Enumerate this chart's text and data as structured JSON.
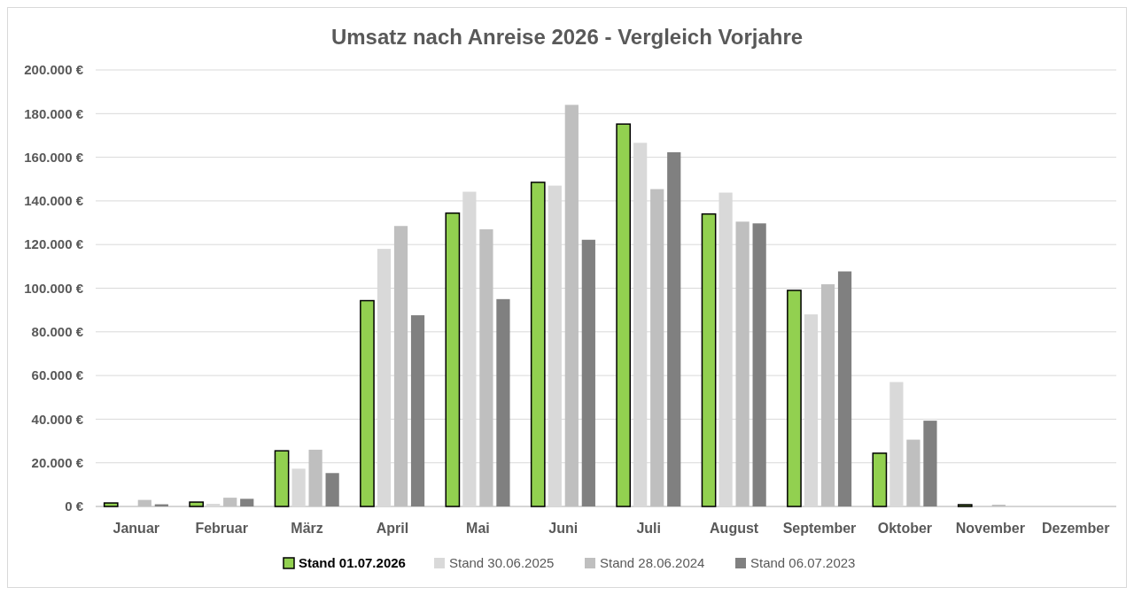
{
  "chart_data": {
    "type": "bar",
    "title": "Umsatz nach Anreise 2026 - Vergleich Vorjahre",
    "categories": [
      "Januar",
      "Februar",
      "März",
      "April",
      "Mai",
      "Juni",
      "Juli",
      "August",
      "September",
      "Oktober",
      "November",
      "Dezember"
    ],
    "series": [
      {
        "name": "Stand 01.07.2026",
        "color": "#92d050",
        "values": [
          1600,
          2000,
          25500,
          94300,
          134400,
          148500,
          175200,
          134000,
          99000,
          24400,
          800,
          0
        ]
      },
      {
        "name": "Stand 30.06.2025",
        "color": "#d9d9d9",
        "values": [
          0,
          1200,
          17300,
          118000,
          144200,
          147000,
          166600,
          143800,
          88000,
          57000,
          0,
          0
        ]
      },
      {
        "name": "Stand 28.06.2024",
        "color": "#bfbfbf",
        "values": [
          3000,
          4000,
          26000,
          128500,
          127000,
          184000,
          145400,
          130500,
          101800,
          30600,
          800,
          0
        ]
      },
      {
        "name": "Stand 06.07.2023",
        "color": "#808080",
        "values": [
          1000,
          3500,
          15300,
          87600,
          95000,
          122200,
          162300,
          129700,
          107700,
          39300,
          0,
          0
        ]
      }
    ],
    "ylim": [
      0,
      200000
    ],
    "yticks": [
      {
        "value": 0,
        "label": "0 €"
      },
      {
        "value": 20000,
        "label": "20.000 €"
      },
      {
        "value": 40000,
        "label": "40.000 €"
      },
      {
        "value": 60000,
        "label": "60.000 €"
      },
      {
        "value": 80000,
        "label": "80.000 €"
      },
      {
        "value": 100000,
        "label": "100.000 €"
      },
      {
        "value": 120000,
        "label": "120.000 €"
      },
      {
        "value": 140000,
        "label": "140.000 €"
      },
      {
        "value": 160000,
        "label": "160.000 €"
      },
      {
        "value": 180000,
        "label": "180.000 €"
      },
      {
        "value": 200000,
        "label": "200.000 €"
      }
    ],
    "grid": "y",
    "legend": "bottom"
  }
}
